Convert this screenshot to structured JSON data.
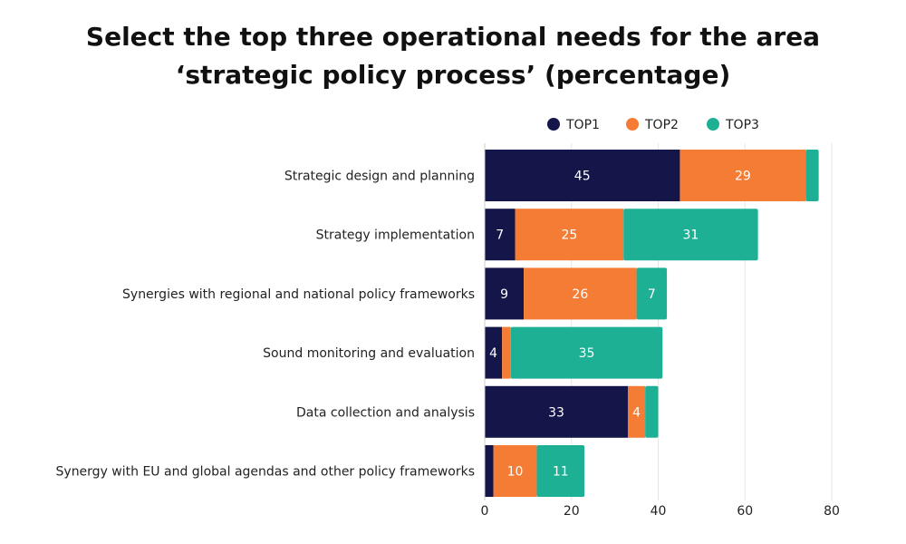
{
  "chart_data": {
    "type": "bar",
    "orientation": "horizontal",
    "stacked": true,
    "title_line1": "Select the top three operational needs for the area",
    "title_line2": "‘strategic policy process’ (percentage)",
    "categories": [
      "Strategic design and planning",
      "Strategy implementation",
      "Synergies with regional and national policy frameworks",
      "Sound monitoring and evaluation",
      "Data collection and analysis",
      "Synergy with EU and global agendas and other policy frameworks"
    ],
    "series": [
      {
        "name": "TOP1",
        "color": "#14164a",
        "values": [
          45,
          7,
          9,
          4,
          33,
          2
        ]
      },
      {
        "name": "TOP2",
        "color": "#f57c35",
        "values": [
          29,
          25,
          26,
          2,
          4,
          10
        ]
      },
      {
        "name": "TOP3",
        "color": "#1eb094",
        "values": [
          3,
          31,
          7,
          35,
          3,
          11
        ]
      }
    ],
    "data_labels": [
      [
        "45",
        "7",
        "9",
        "4",
        "33",
        ""
      ],
      [
        "29",
        "25",
        "26",
        "",
        "4",
        "10"
      ],
      [
        "",
        "31",
        "7",
        "35",
        "",
        "11"
      ]
    ],
    "xlim": [
      0,
      80
    ],
    "xticks": [
      "0",
      "20",
      "40",
      "60",
      "80"
    ],
    "grid": true,
    "legend_position": "top-right"
  }
}
